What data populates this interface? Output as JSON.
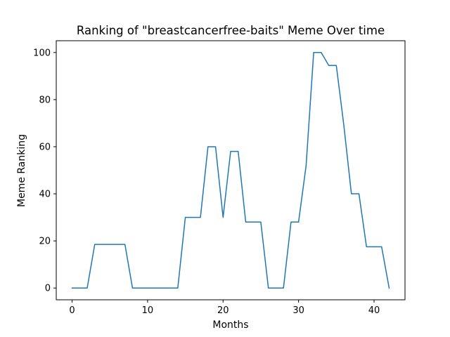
{
  "chart_data": {
    "type": "line",
    "title": "Ranking of \"breastcancerfree-baits\" Meme Over time",
    "xlabel": "Months",
    "ylabel": "Meme Ranking",
    "xlim": [
      -2.1,
      44.1
    ],
    "ylim": [
      -5,
      105
    ],
    "xticks": [
      0,
      10,
      20,
      30,
      40
    ],
    "yticks": [
      0,
      20,
      40,
      60,
      80,
      100
    ],
    "xtick_labels": [
      "0",
      "10",
      "20",
      "30",
      "40"
    ],
    "ytick_labels": [
      "0",
      "20",
      "40",
      "60",
      "80",
      "100"
    ],
    "grid": false,
    "series": [
      {
        "color": "#1f77b4",
        "x": [
          0,
          1,
          2,
          3,
          4,
          5,
          6,
          7,
          8,
          9,
          10,
          11,
          12,
          13,
          14,
          15,
          16,
          17,
          18,
          19,
          20,
          21,
          22,
          23,
          24,
          25,
          26,
          27,
          28,
          29,
          30,
          31,
          32,
          33,
          34,
          35,
          36,
          37,
          38,
          39,
          40,
          41,
          42
        ],
        "y": [
          0,
          0,
          0,
          18.5,
          18.5,
          18.5,
          18.5,
          18.5,
          0,
          0,
          0,
          0,
          0,
          0,
          0,
          30,
          30,
          30,
          60,
          60,
          30,
          58,
          58,
          28,
          28,
          28,
          0,
          0,
          0,
          28,
          28,
          52,
          100,
          100,
          94.5,
          94.5,
          69,
          40,
          40,
          17.5,
          17.5,
          17.5,
          0
        ]
      }
    ]
  }
}
